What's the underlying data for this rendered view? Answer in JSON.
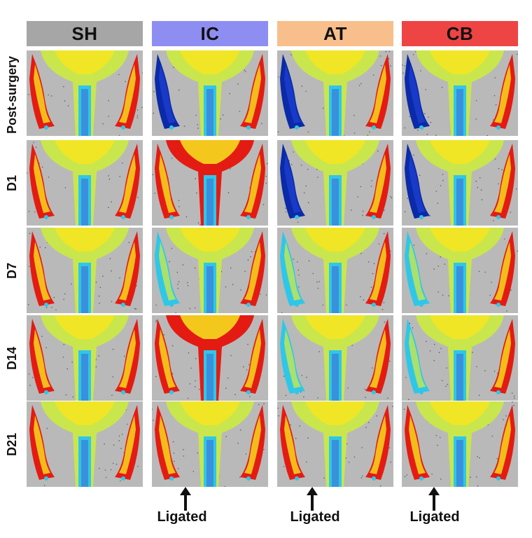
{
  "columns": [
    {
      "label": "SH",
      "color": "#a6a6a6"
    },
    {
      "label": "IC",
      "color": "#8e8ef2"
    },
    {
      "label": "AT",
      "color": "#f8bf8c"
    },
    {
      "label": "CB",
      "color": "#ef4444"
    }
  ],
  "rows": [
    "Post-surgery",
    "D1",
    "D7",
    "D14",
    "D21"
  ],
  "annotations": {
    "ligated_label": "Ligated"
  },
  "palette": {
    "background": "#b9b9b9",
    "cold": "#0a2aa8",
    "cool": "#2fc7e8",
    "mid": "#c9e64d",
    "warm": "#f7e51e",
    "hot": "#e41b13"
  },
  "panels": {
    "SH": [
      "normal",
      "normal",
      "normal",
      "normal",
      "normal"
    ],
    "IC": [
      "cold",
      "hot-body",
      "cold-warming",
      "hot-body",
      "recovered"
    ],
    "AT": [
      "cold",
      "cold",
      "warming",
      "warming",
      "recovered"
    ],
    "CB": [
      "cold",
      "cold",
      "warming",
      "warming",
      "recovered"
    ]
  }
}
